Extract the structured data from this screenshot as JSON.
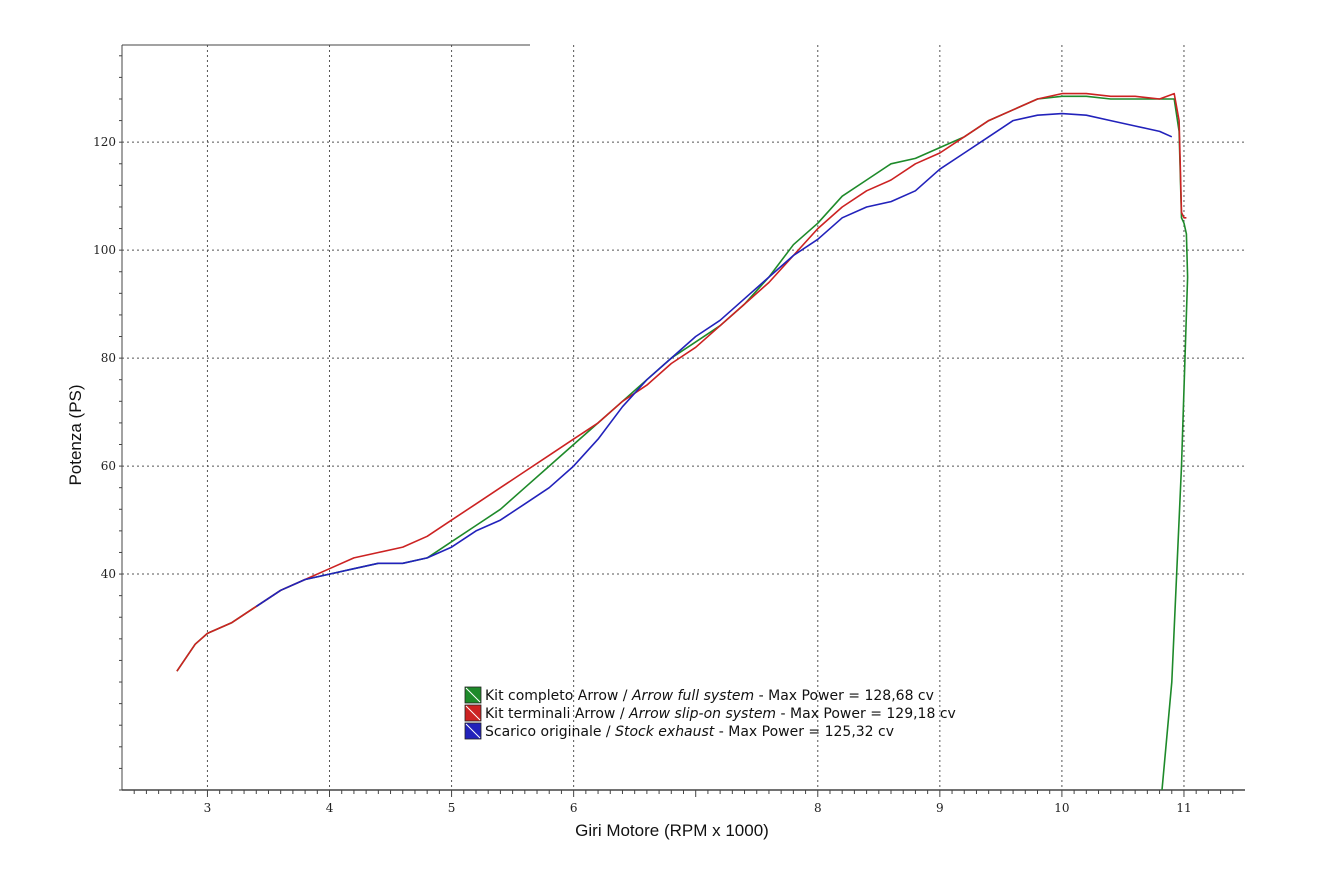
{
  "chart_data": {
    "type": "line",
    "title": "",
    "xlabel": "Giri Motore (RPM x 1000)",
    "ylabel": "Potenza (PS)",
    "xlim": [
      2.3,
      11.5
    ],
    "ylim": [
      0,
      138
    ],
    "x_ticks": [
      3,
      4,
      5,
      6,
      8,
      9,
      10,
      11
    ],
    "y_ticks": [
      40,
      60,
      80,
      100,
      120
    ],
    "grid": true,
    "legend_position": "bottom-center",
    "series": [
      {
        "name": "Kit completo Arrow",
        "name_en": "Arrow full system",
        "max_power_label": "Max Power = 128,68 cv",
        "color": "#1e8a2a",
        "x": [
          2.75,
          2.9,
          3.0,
          3.2,
          3.4,
          3.6,
          3.8,
          4.0,
          4.2,
          4.4,
          4.6,
          4.8,
          5.0,
          5.2,
          5.4,
          5.6,
          5.8,
          6.0,
          6.2,
          6.4,
          6.6,
          6.8,
          7.0,
          7.2,
          7.4,
          7.6,
          7.8,
          8.0,
          8.2,
          8.4,
          8.6,
          8.8,
          9.0,
          9.2,
          9.4,
          9.6,
          9.8,
          10.0,
          10.2,
          10.4,
          10.6,
          10.8,
          10.92,
          10.96,
          10.98,
          11.0,
          11.02,
          11.03,
          10.98,
          10.9,
          10.82
        ],
        "values": [
          22,
          27,
          29,
          31,
          34,
          37,
          39,
          40,
          41,
          42,
          42,
          43,
          46,
          49,
          52,
          56,
          60,
          64,
          68,
          72,
          76,
          80,
          83,
          86,
          90,
          95,
          101,
          105,
          110,
          113,
          116,
          117,
          119,
          121,
          124,
          126,
          128,
          128.5,
          128.5,
          128,
          128,
          128,
          128,
          122,
          106,
          105,
          103,
          95,
          60,
          20,
          0
        ]
      },
      {
        "name": "Kit terminali Arrow",
        "name_en": "Arrow slip-on system",
        "max_power_label": "Max Power = 129,18 cv",
        "color": "#cc2222",
        "x": [
          2.75,
          2.9,
          3.0,
          3.2,
          3.4,
          3.6,
          3.8,
          4.0,
          4.2,
          4.4,
          4.6,
          4.8,
          5.0,
          5.2,
          5.4,
          5.6,
          5.8,
          6.0,
          6.2,
          6.4,
          6.6,
          6.8,
          7.0,
          7.2,
          7.4,
          7.6,
          7.8,
          8.0,
          8.2,
          8.4,
          8.6,
          8.8,
          9.0,
          9.2,
          9.4,
          9.6,
          9.8,
          10.0,
          10.2,
          10.4,
          10.6,
          10.8,
          10.92,
          10.96,
          10.98,
          11.0,
          11.02
        ],
        "values": [
          22,
          27,
          29,
          31,
          34,
          37,
          39,
          41,
          43,
          44,
          45,
          47,
          50,
          53,
          56,
          59,
          62,
          65,
          68,
          72,
          75,
          79,
          82,
          86,
          90,
          94,
          99,
          104,
          108,
          111,
          113,
          116,
          118,
          121,
          124,
          126,
          128,
          129,
          129,
          128.5,
          128.5,
          128,
          129,
          124,
          107,
          106,
          106
        ]
      },
      {
        "name": "Scarico originale",
        "name_en": "Stock exhaust",
        "max_power_label": "Max Power = 125,32 cv",
        "color": "#2222bb",
        "x": [
          3.4,
          3.6,
          3.8,
          4.0,
          4.2,
          4.4,
          4.6,
          4.8,
          5.0,
          5.2,
          5.4,
          5.6,
          5.8,
          6.0,
          6.2,
          6.4,
          6.6,
          6.8,
          7.0,
          7.2,
          7.4,
          7.6,
          7.8,
          8.0,
          8.2,
          8.4,
          8.6,
          8.8,
          9.0,
          9.2,
          9.4,
          9.6,
          9.8,
          10.0,
          10.2,
          10.4,
          10.6,
          10.8,
          10.9
        ],
        "values": [
          34,
          37,
          39,
          40,
          41,
          42,
          42,
          43,
          45,
          48,
          50,
          53,
          56,
          60,
          65,
          71,
          76,
          80,
          84,
          87,
          91,
          95,
          99,
          102,
          106,
          108,
          109,
          111,
          115,
          118,
          121,
          124,
          125,
          125.3,
          125,
          124,
          123,
          122,
          121
        ]
      }
    ],
    "legend": [
      {
        "it": "Kit completo Arrow / ",
        "en": "Arrow full system",
        "suffix": " - Max Power = 128,68 cv"
      },
      {
        "it": "Kit terminali Arrow / ",
        "en": "Arrow slip-on system",
        "suffix": " - Max Power = 129,18 cv"
      },
      {
        "it": "Scarico originale / ",
        "en": "Stock exhaust",
        "suffix": " - Max Power = 125,32 cv"
      }
    ]
  }
}
